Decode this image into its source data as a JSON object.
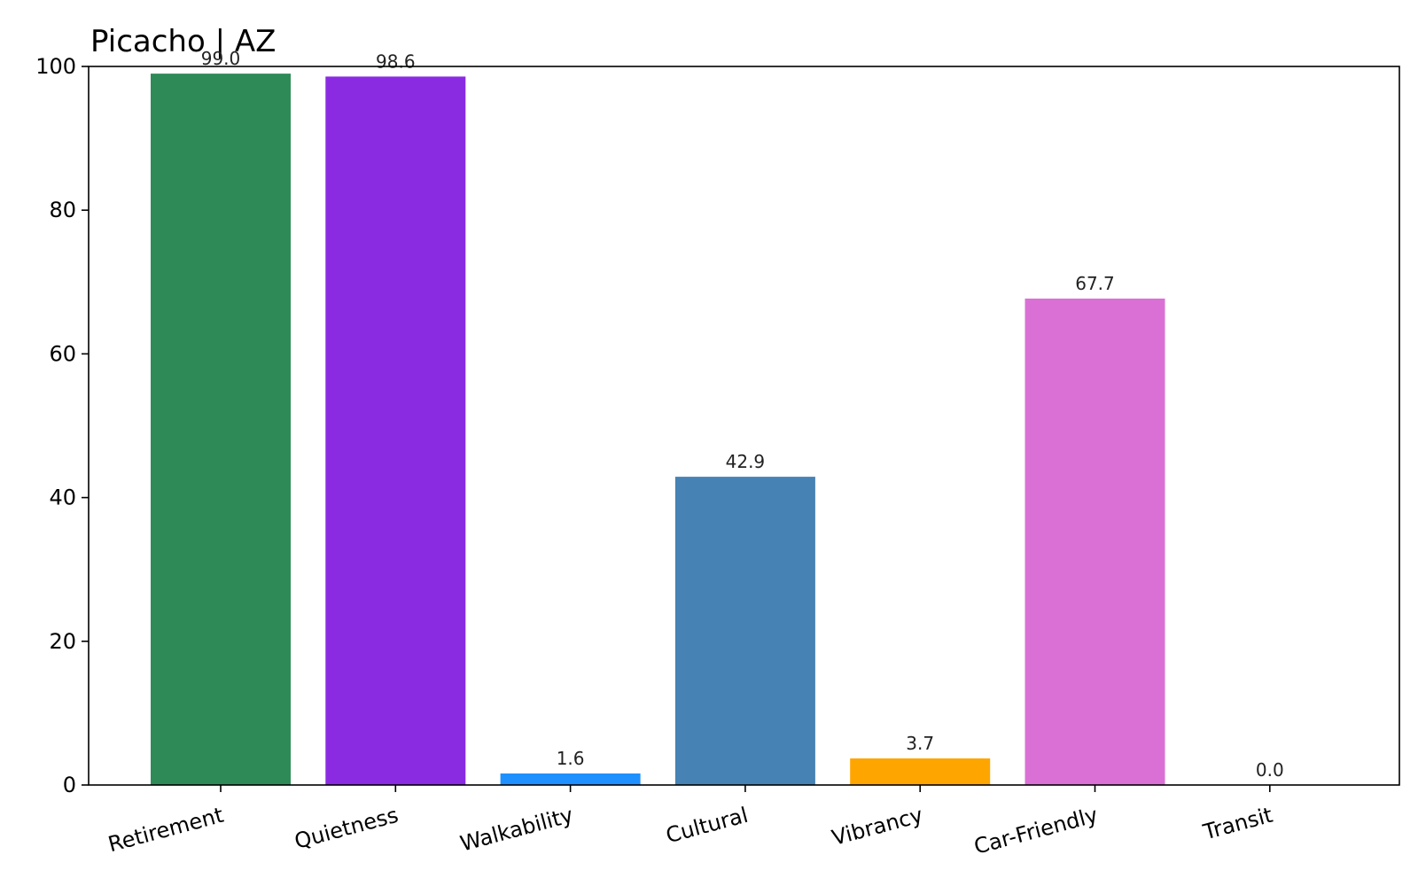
{
  "chart_data": {
    "type": "bar",
    "title": "Picacho | AZ",
    "xlabel": "",
    "ylabel": "",
    "categories": [
      "Retirement",
      "Quietness",
      "Walkability",
      "Cultural",
      "Vibrancy",
      "Car-Friendly",
      "Transit"
    ],
    "values": [
      99.0,
      98.6,
      1.6,
      42.9,
      3.7,
      67.7,
      0.0
    ],
    "value_labels": [
      "99.0",
      "98.6",
      "1.6",
      "42.9",
      "3.7",
      "67.7",
      "0.0"
    ],
    "colors": [
      "#2e8b57",
      "#8a2be2",
      "#1e90ff",
      "#4682b4",
      "#ffa500",
      "#da70d6",
      "#708090"
    ],
    "ylim": [
      0,
      100
    ],
    "yticks": [
      0,
      20,
      40,
      60,
      80,
      100
    ],
    "ytick_labels": [
      "0",
      "20",
      "40",
      "60",
      "80",
      "100"
    ],
    "grid": false,
    "legend": "none"
  }
}
